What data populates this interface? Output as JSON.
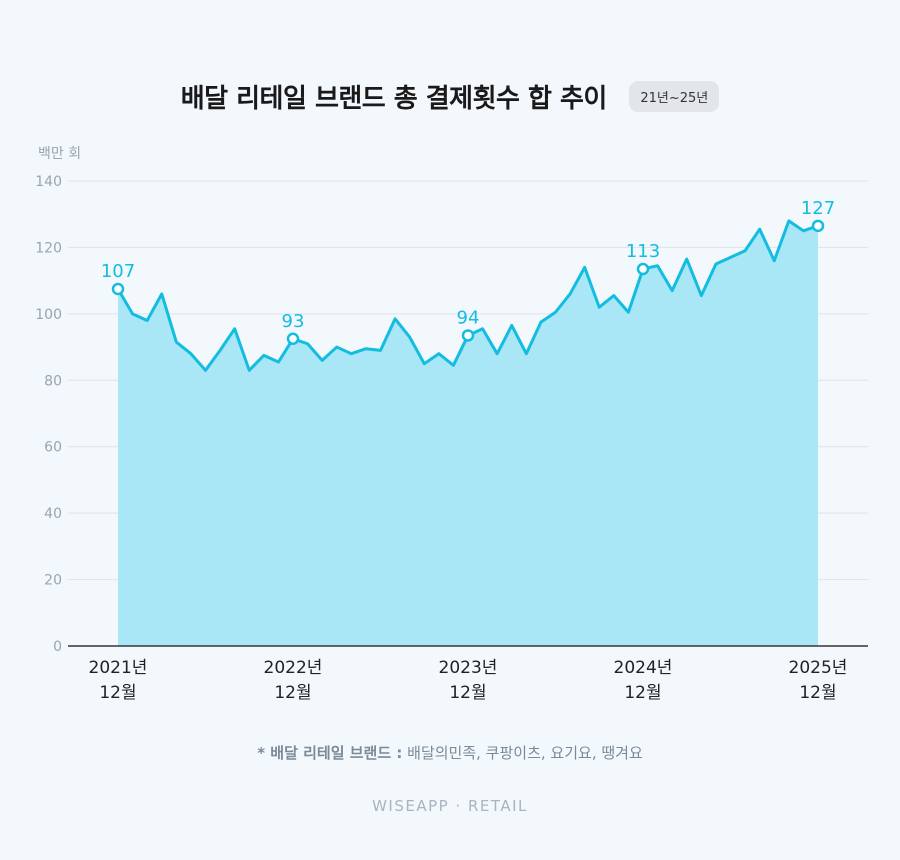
{
  "title": "배달 리테일 브랜드 총 결제횟수 합 추이",
  "period_badge": "21년~25년",
  "footnote": {
    "prefix": "* 배달 리테일 브랜드 :",
    "text": "배달의민족, 쿠팡이츠, 요기요, 땡겨요"
  },
  "brand_mark": "WISEAPP · RETAIL",
  "colors": {
    "line": "#12bde0",
    "area": "#a9e7f6",
    "grid": "#dde3e8",
    "axis": "#333333",
    "tick_text": "#9aa5ae"
  },
  "chart_data": {
    "type": "area",
    "ylabel": "백만 회",
    "ylim": [
      0,
      140
    ],
    "yticks": [
      0,
      20,
      40,
      60,
      80,
      100,
      120,
      140
    ],
    "grid": true,
    "x_tick_labels": [
      {
        "index": 0,
        "year": "2021년",
        "month": "12월"
      },
      {
        "index": 12,
        "year": "2022년",
        "month": "12월"
      },
      {
        "index": 24,
        "year": "2023년",
        "month": "12월"
      },
      {
        "index": 36,
        "year": "2024년",
        "month": "12월"
      },
      {
        "index": 48,
        "year": "2025년",
        "month": "12월"
      }
    ],
    "values": [
      107.5,
      100,
      98,
      106,
      91.5,
      88,
      83,
      89,
      95.5,
      83,
      87.5,
      85.5,
      92.5,
      91,
      86,
      90,
      88,
      89.5,
      89,
      98.5,
      93,
      85,
      88,
      84.5,
      93.5,
      95.5,
      88,
      96.5,
      88,
      97.5,
      100.5,
      106,
      114,
      102,
      105.5,
      100.5,
      113.5,
      114.5,
      107,
      116.5,
      105.5,
      115,
      117,
      119,
      125.5,
      116,
      128,
      125,
      126.5
    ],
    "annotations": [
      {
        "index": 0,
        "label": "107"
      },
      {
        "index": 12,
        "label": "93"
      },
      {
        "index": 24,
        "label": "94"
      },
      {
        "index": 36,
        "label": "113"
      },
      {
        "index": 48,
        "label": "127"
      }
    ]
  }
}
